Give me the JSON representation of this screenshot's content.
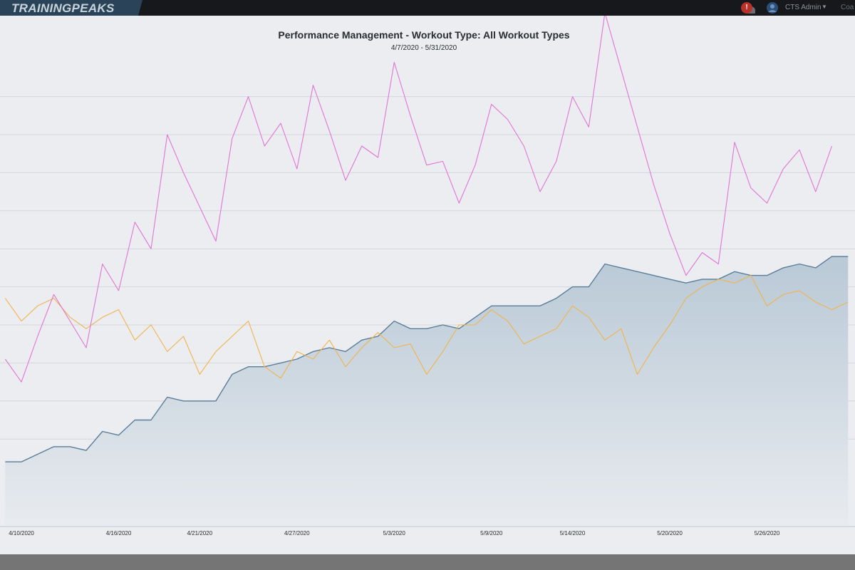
{
  "app": {
    "logo_text": "TRAININGPEAKS",
    "notification_count": "!",
    "account_name": "CTS Admin",
    "account_chevron": "▼",
    "extra_menu_label": "Coa"
  },
  "colors": {
    "fitness": "#5a7d99",
    "fitness_fill_top": "#b9c9d6",
    "fitness_fill_bottom": "#e8ebef",
    "fatigue": "#e075d5",
    "form": "#f0b44c",
    "grid": "#d4d7db",
    "background": "#ebedf0",
    "topbar": "#16181b",
    "notification": "#b8312a"
  },
  "chart_data": {
    "type": "line",
    "title": "Performance Management - Workout Type: All Workout Types",
    "subtitle": "4/7/2020 - 5/31/2020",
    "x_range": [
      "4/7/2020",
      "5/31/2020"
    ],
    "x_tick_labels": [
      "4/10/2020",
      "4/16/2020",
      "4/21/2020",
      "4/27/2020",
      "5/3/2020",
      "5/9/2020",
      "5/14/2020",
      "5/20/2020",
      "5/26/2020"
    ],
    "x_tick_dates": [
      "2020-04-10",
      "2020-04-16",
      "2020-04-21",
      "2020-04-27",
      "2020-05-03",
      "2020-05-09",
      "2020-05-14",
      "2020-05-20",
      "2020-05-26"
    ],
    "y_axis_labels_visible": false,
    "ylim": [
      0,
      13
    ],
    "grid": true,
    "series": [
      {
        "key": "fatigue",
        "style": "line",
        "points": [
          [
            "2020-04-09",
            4.4
          ],
          [
            "2020-04-10",
            3.8
          ],
          [
            "2020-04-11",
            5.0
          ],
          [
            "2020-04-12",
            6.1
          ],
          [
            "2020-04-13",
            5.4
          ],
          [
            "2020-04-14",
            4.7
          ],
          [
            "2020-04-15",
            6.9
          ],
          [
            "2020-04-16",
            6.2
          ],
          [
            "2020-04-17",
            8.0
          ],
          [
            "2020-04-18",
            7.3
          ],
          [
            "2020-04-19",
            10.3
          ],
          [
            "2020-04-20",
            9.3
          ],
          [
            "2020-04-21",
            8.4
          ],
          [
            "2020-04-22",
            7.5
          ],
          [
            "2020-04-23",
            10.2
          ],
          [
            "2020-04-24",
            11.3
          ],
          [
            "2020-04-25",
            10.0
          ],
          [
            "2020-04-26",
            10.6
          ],
          [
            "2020-04-27",
            9.4
          ],
          [
            "2020-04-28",
            11.6
          ],
          [
            "2020-04-29",
            10.4
          ],
          [
            "2020-04-30",
            9.1
          ],
          [
            "2020-05-01",
            10.0
          ],
          [
            "2020-05-02",
            9.7
          ],
          [
            "2020-05-03",
            12.2
          ],
          [
            "2020-05-04",
            10.8
          ],
          [
            "2020-05-05",
            9.5
          ],
          [
            "2020-05-06",
            9.6
          ],
          [
            "2020-05-07",
            8.5
          ],
          [
            "2020-05-08",
            9.5
          ],
          [
            "2020-05-09",
            11.1
          ],
          [
            "2020-05-10",
            10.7
          ],
          [
            "2020-05-11",
            10.0
          ],
          [
            "2020-05-12",
            8.8
          ],
          [
            "2020-05-13",
            9.6
          ],
          [
            "2020-05-14",
            11.3
          ],
          [
            "2020-05-15",
            10.5
          ],
          [
            "2020-05-16",
            13.5
          ],
          [
            "2020-05-17",
            12.0
          ],
          [
            "2020-05-18",
            10.5
          ],
          [
            "2020-05-19",
            9.0
          ],
          [
            "2020-05-20",
            7.7
          ],
          [
            "2020-05-21",
            6.6
          ],
          [
            "2020-05-22",
            7.2
          ],
          [
            "2020-05-23",
            6.9
          ],
          [
            "2020-05-24",
            10.1
          ],
          [
            "2020-05-25",
            8.9
          ],
          [
            "2020-05-26",
            8.5
          ],
          [
            "2020-05-27",
            9.4
          ],
          [
            "2020-05-28",
            9.9
          ],
          [
            "2020-05-29",
            8.8
          ],
          [
            "2020-05-30",
            10.0
          ]
        ]
      },
      {
        "key": "form",
        "style": "line",
        "points": [
          [
            "2020-04-09",
            6.0
          ],
          [
            "2020-04-10",
            5.4
          ],
          [
            "2020-04-11",
            5.8
          ],
          [
            "2020-04-12",
            6.0
          ],
          [
            "2020-04-13",
            5.5
          ],
          [
            "2020-04-14",
            5.2
          ],
          [
            "2020-04-15",
            5.5
          ],
          [
            "2020-04-16",
            5.7
          ],
          [
            "2020-04-17",
            4.9
          ],
          [
            "2020-04-18",
            5.3
          ],
          [
            "2020-04-19",
            4.6
          ],
          [
            "2020-04-20",
            5.0
          ],
          [
            "2020-04-21",
            4.0
          ],
          [
            "2020-04-22",
            4.6
          ],
          [
            "2020-04-23",
            5.0
          ],
          [
            "2020-04-24",
            5.4
          ],
          [
            "2020-04-25",
            4.2
          ],
          [
            "2020-04-26",
            3.9
          ],
          [
            "2020-04-27",
            4.6
          ],
          [
            "2020-04-28",
            4.4
          ],
          [
            "2020-04-29",
            4.9
          ],
          [
            "2020-04-30",
            4.2
          ],
          [
            "2020-05-01",
            4.7
          ],
          [
            "2020-05-02",
            5.1
          ],
          [
            "2020-05-03",
            4.7
          ],
          [
            "2020-05-04",
            4.8
          ],
          [
            "2020-05-05",
            4.0
          ],
          [
            "2020-05-06",
            4.6
          ],
          [
            "2020-05-07",
            5.3
          ],
          [
            "2020-05-08",
            5.3
          ],
          [
            "2020-05-09",
            5.7
          ],
          [
            "2020-05-10",
            5.4
          ],
          [
            "2020-05-11",
            4.8
          ],
          [
            "2020-05-12",
            5.0
          ],
          [
            "2020-05-13",
            5.2
          ],
          [
            "2020-05-14",
            5.8
          ],
          [
            "2020-05-15",
            5.5
          ],
          [
            "2020-05-16",
            4.9
          ],
          [
            "2020-05-17",
            5.2
          ],
          [
            "2020-05-18",
            4.0
          ],
          [
            "2020-05-19",
            4.7
          ],
          [
            "2020-05-20",
            5.3
          ],
          [
            "2020-05-21",
            6.0
          ],
          [
            "2020-05-22",
            6.3
          ],
          [
            "2020-05-23",
            6.5
          ],
          [
            "2020-05-24",
            6.4
          ],
          [
            "2020-05-25",
            6.6
          ],
          [
            "2020-05-26",
            5.8
          ],
          [
            "2020-05-27",
            6.1
          ],
          [
            "2020-05-28",
            6.2
          ],
          [
            "2020-05-29",
            5.9
          ],
          [
            "2020-05-30",
            5.7
          ],
          [
            "2020-05-31",
            5.9
          ]
        ]
      },
      {
        "key": "fitness",
        "style": "area",
        "points": [
          [
            "2020-04-09",
            1.7
          ],
          [
            "2020-04-10",
            1.7
          ],
          [
            "2020-04-11",
            1.9
          ],
          [
            "2020-04-12",
            2.1
          ],
          [
            "2020-04-13",
            2.1
          ],
          [
            "2020-04-14",
            2.0
          ],
          [
            "2020-04-15",
            2.5
          ],
          [
            "2020-04-16",
            2.4
          ],
          [
            "2020-04-17",
            2.8
          ],
          [
            "2020-04-18",
            2.8
          ],
          [
            "2020-04-19",
            3.4
          ],
          [
            "2020-04-20",
            3.3
          ],
          [
            "2020-04-21",
            3.3
          ],
          [
            "2020-04-22",
            3.3
          ],
          [
            "2020-04-23",
            4.0
          ],
          [
            "2020-04-24",
            4.2
          ],
          [
            "2020-04-25",
            4.2
          ],
          [
            "2020-04-26",
            4.3
          ],
          [
            "2020-04-27",
            4.4
          ],
          [
            "2020-04-28",
            4.6
          ],
          [
            "2020-04-29",
            4.7
          ],
          [
            "2020-04-30",
            4.6
          ],
          [
            "2020-05-01",
            4.9
          ],
          [
            "2020-05-02",
            5.0
          ],
          [
            "2020-05-03",
            5.4
          ],
          [
            "2020-05-04",
            5.2
          ],
          [
            "2020-05-05",
            5.2
          ],
          [
            "2020-05-06",
            5.3
          ],
          [
            "2020-05-07",
            5.2
          ],
          [
            "2020-05-08",
            5.5
          ],
          [
            "2020-05-09",
            5.8
          ],
          [
            "2020-05-10",
            5.8
          ],
          [
            "2020-05-11",
            5.8
          ],
          [
            "2020-05-12",
            5.8
          ],
          [
            "2020-05-13",
            6.0
          ],
          [
            "2020-05-14",
            6.3
          ],
          [
            "2020-05-15",
            6.3
          ],
          [
            "2020-05-16",
            6.9
          ],
          [
            "2020-05-17",
            6.8
          ],
          [
            "2020-05-18",
            6.7
          ],
          [
            "2020-05-19",
            6.6
          ],
          [
            "2020-05-20",
            6.5
          ],
          [
            "2020-05-21",
            6.4
          ],
          [
            "2020-05-22",
            6.5
          ],
          [
            "2020-05-23",
            6.5
          ],
          [
            "2020-05-24",
            6.7
          ],
          [
            "2020-05-25",
            6.6
          ],
          [
            "2020-05-26",
            6.6
          ],
          [
            "2020-05-27",
            6.8
          ],
          [
            "2020-05-28",
            6.9
          ],
          [
            "2020-05-29",
            6.8
          ],
          [
            "2020-05-30",
            7.1
          ],
          [
            "2020-05-31",
            7.1
          ]
        ]
      }
    ]
  }
}
